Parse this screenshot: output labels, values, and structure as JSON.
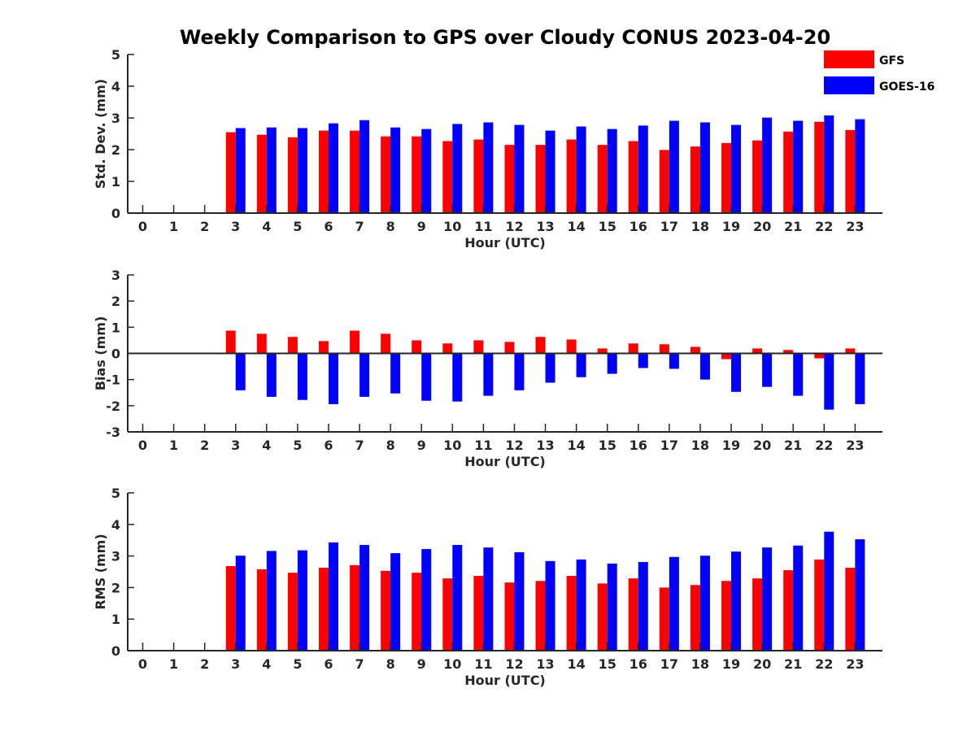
{
  "title": "Weekly Comparison to GPS over Cloudy CONUS 2023-04-20",
  "colors": {
    "GFS": "#ff0000",
    "GOES-16": "#0000ff",
    "axis": "#262626"
  },
  "legend": {
    "placement": "top-right",
    "entries": [
      "GFS",
      "GOES-16"
    ]
  },
  "chart_data": [
    {
      "type": "bar",
      "xlabel": "Hour (UTC)",
      "ylabel": "Std. Dev. (mm)",
      "ylim": [
        0,
        5
      ],
      "yticks": [
        0,
        1,
        2,
        3,
        4,
        5
      ],
      "categories": [
        "0",
        "1",
        "2",
        "3",
        "4",
        "5",
        "6",
        "7",
        "8",
        "9",
        "10",
        "11",
        "12",
        "13",
        "14",
        "15",
        "16",
        "17",
        "18",
        "19",
        "20",
        "21",
        "22",
        "23"
      ],
      "series": [
        {
          "name": "GFS",
          "values": [
            null,
            null,
            null,
            2.55,
            2.47,
            2.39,
            2.6,
            2.6,
            2.42,
            2.42,
            2.27,
            2.32,
            2.15,
            2.15,
            2.32,
            2.15,
            2.27,
            1.99,
            2.1,
            2.21,
            2.29,
            2.57,
            2.88,
            2.62
          ]
        },
        {
          "name": "GOES-16",
          "values": [
            null,
            null,
            null,
            2.68,
            2.7,
            2.68,
            2.83,
            2.93,
            2.7,
            2.65,
            2.81,
            2.86,
            2.78,
            2.6,
            2.73,
            2.65,
            2.76,
            2.91,
            2.86,
            2.78,
            3.01,
            2.91,
            3.08,
            2.96
          ]
        }
      ]
    },
    {
      "type": "bar",
      "xlabel": "Hour (UTC)",
      "ylabel": "Bias (mm)",
      "ylim": [
        -3,
        3
      ],
      "yticks": [
        -3,
        -2,
        -1,
        0,
        1,
        2,
        3
      ],
      "categories": [
        "0",
        "1",
        "2",
        "3",
        "4",
        "5",
        "6",
        "7",
        "8",
        "9",
        "10",
        "11",
        "12",
        "13",
        "14",
        "15",
        "16",
        "17",
        "18",
        "19",
        "20",
        "21",
        "22",
        "23"
      ],
      "series": [
        {
          "name": "GFS",
          "values": [
            null,
            null,
            null,
            0.87,
            0.75,
            0.63,
            0.47,
            0.87,
            0.75,
            0.5,
            0.38,
            0.5,
            0.44,
            0.63,
            0.53,
            0.19,
            0.38,
            0.35,
            0.25,
            -0.22,
            0.19,
            0.13,
            -0.19,
            0.19
          ]
        },
        {
          "name": "GOES-16",
          "values": [
            null,
            null,
            null,
            -1.41,
            -1.66,
            -1.78,
            -1.94,
            -1.66,
            -1.53,
            -1.81,
            -1.84,
            -1.62,
            -1.41,
            -1.12,
            -0.91,
            -0.78,
            -0.56,
            -0.59,
            -1.0,
            -1.47,
            -1.28,
            -1.62,
            -2.15,
            -1.94
          ]
        }
      ]
    },
    {
      "type": "bar",
      "xlabel": "Hour (UTC)",
      "ylabel": "RMS (mm)",
      "ylim": [
        0,
        5
      ],
      "yticks": [
        0,
        1,
        2,
        3,
        4,
        5
      ],
      "categories": [
        "0",
        "1",
        "2",
        "3",
        "4",
        "5",
        "6",
        "7",
        "8",
        "9",
        "10",
        "11",
        "12",
        "13",
        "14",
        "15",
        "16",
        "17",
        "18",
        "19",
        "20",
        "21",
        "22",
        "23"
      ],
      "series": [
        {
          "name": "GFS",
          "values": [
            null,
            null,
            null,
            2.68,
            2.58,
            2.47,
            2.63,
            2.71,
            2.53,
            2.47,
            2.29,
            2.37,
            2.16,
            2.21,
            2.37,
            2.13,
            2.29,
            2.0,
            2.08,
            2.21,
            2.29,
            2.55,
            2.89,
            2.63
          ]
        },
        {
          "name": "GOES-16",
          "values": [
            null,
            null,
            null,
            3.01,
            3.16,
            3.18,
            3.43,
            3.35,
            3.09,
            3.22,
            3.35,
            3.27,
            3.12,
            2.84,
            2.89,
            2.76,
            2.81,
            2.97,
            3.01,
            3.14,
            3.27,
            3.33,
            3.77,
            3.53
          ]
        }
      ]
    }
  ]
}
